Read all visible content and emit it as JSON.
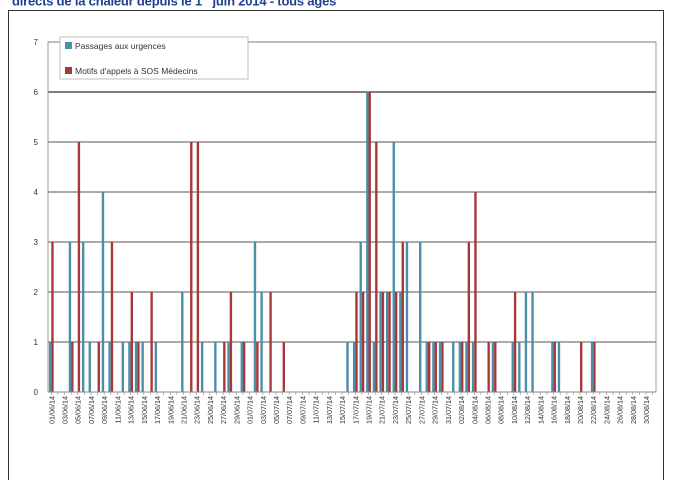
{
  "title": {
    "main": "directs de la chaleur depuis le 1",
    "sup": "er",
    "tail": " juin 2014 - tous âges"
  },
  "chart_data": {
    "type": "bar",
    "title": "",
    "xlabel": "",
    "ylabel": "",
    "ylim": [
      0,
      7
    ],
    "yticks": [
      0,
      1,
      2,
      3,
      4,
      5,
      6,
      7
    ],
    "grid": true,
    "legend_placement": "top-left",
    "colors": {
      "passages": "#4a8fa8",
      "sos": "#a8373a",
      "grid": "#555555",
      "axis": "#888888"
    },
    "categories": [
      "01/06/14",
      "02/06/14",
      "03/06/14",
      "04/06/14",
      "05/06/14",
      "06/06/14",
      "07/06/14",
      "08/06/14",
      "09/06/14",
      "10/06/14",
      "11/06/14",
      "12/06/14",
      "13/06/14",
      "14/06/14",
      "15/06/14",
      "16/06/14",
      "17/06/14",
      "18/06/14",
      "19/06/14",
      "20/06/14",
      "21/06/14",
      "22/06/14",
      "23/06/14",
      "24/06/14",
      "25/06/14",
      "26/06/14",
      "27/06/14",
      "28/06/14",
      "29/06/14",
      "30/06/14",
      "01/07/14",
      "02/07/14",
      "03/07/14",
      "04/07/14",
      "05/07/14",
      "06/07/14",
      "07/07/14",
      "08/07/14",
      "09/07/14",
      "10/07/14",
      "11/07/14",
      "12/07/14",
      "13/07/14",
      "14/07/14",
      "15/07/14",
      "16/07/14",
      "17/07/14",
      "18/07/14",
      "19/07/14",
      "20/07/14",
      "21/07/14",
      "22/07/14",
      "23/07/14",
      "24/07/14",
      "25/07/14",
      "26/07/14",
      "27/07/14",
      "28/07/14",
      "29/07/14",
      "30/07/14",
      "31/07/14",
      "01/08/14",
      "02/08/14",
      "03/08/14",
      "04/08/14",
      "05/08/14",
      "06/08/14",
      "07/08/14",
      "08/08/14",
      "09/08/14",
      "10/08/14",
      "11/08/14",
      "12/08/14",
      "13/08/14",
      "14/08/14",
      "15/08/14",
      "16/08/14",
      "17/08/14",
      "18/08/14",
      "19/08/14",
      "20/08/14",
      "21/08/14",
      "22/08/14",
      "23/08/14",
      "24/08/14",
      "25/08/14",
      "26/08/14",
      "27/08/14",
      "28/08/14",
      "29/08/14",
      "30/08/14",
      "31/08/14"
    ],
    "series": [
      {
        "name": "Passages aux urgences",
        "color": "#4a8fa8",
        "values": [
          1,
          0,
          0,
          3,
          0,
          3,
          1,
          0,
          4,
          1,
          0,
          1,
          1,
          1,
          1,
          0,
          1,
          0,
          0,
          0,
          2,
          0,
          0,
          1,
          0,
          1,
          0,
          1,
          0,
          1,
          0,
          3,
          2,
          0,
          0,
          0,
          0,
          0,
          0,
          0,
          0,
          0,
          0,
          0,
          0,
          1,
          1,
          3,
          6,
          1,
          2,
          2,
          5,
          2,
          3,
          0,
          3,
          1,
          1,
          1,
          0,
          1,
          1,
          1,
          1,
          0,
          0,
          1,
          0,
          0,
          1,
          1,
          2,
          2,
          0,
          0,
          1,
          1,
          0,
          0,
          0,
          0,
          1,
          0,
          0,
          0,
          0,
          0,
          0,
          0,
          0,
          0
        ]
      },
      {
        "name": "Motifs d'appels à SOS Médecins",
        "color": "#a8373a",
        "values": [
          3,
          0,
          0,
          1,
          5,
          0,
          0,
          1,
          0,
          3,
          0,
          0,
          2,
          1,
          0,
          2,
          0,
          0,
          0,
          0,
          0,
          5,
          5,
          0,
          0,
          0,
          1,
          2,
          0,
          1,
          0,
          1,
          0,
          2,
          0,
          1,
          0,
          0,
          0,
          0,
          0,
          0,
          0,
          0,
          0,
          0,
          2,
          2,
          6,
          5,
          2,
          2,
          2,
          3,
          0,
          0,
          0,
          1,
          1,
          1,
          0,
          0,
          1,
          3,
          4,
          0,
          1,
          1,
          0,
          0,
          2,
          0,
          0,
          0,
          0,
          0,
          1,
          0,
          0,
          0,
          1,
          0,
          1,
          0,
          0,
          0,
          0,
          0,
          0,
          0,
          0,
          0
        ]
      }
    ]
  }
}
